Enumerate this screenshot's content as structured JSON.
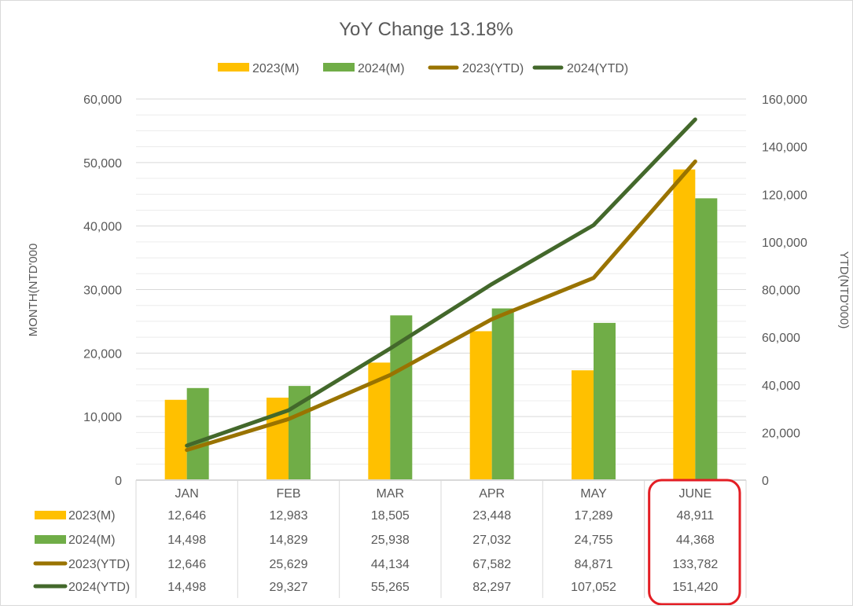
{
  "chart_data": {
    "type": "bar+line",
    "title": "YoY Change 13.18%",
    "categories": [
      "JAN",
      "FEB",
      "MAR",
      "APR",
      "MAY",
      "JUNE"
    ],
    "ylabel": "MONTH(NTD'000",
    "y2label": "YTD(NTD'000)",
    "ylim": [
      0,
      60000
    ],
    "y2lim": [
      0,
      160000
    ],
    "yticks": [
      "0",
      "10,000",
      "20,000",
      "30,000",
      "40,000",
      "50,000",
      "60,000"
    ],
    "y2ticks": [
      "0",
      "20,000",
      "40,000",
      "60,000",
      "80,000",
      "100,000",
      "120,000",
      "140,000",
      "160,000"
    ],
    "grid": true,
    "legend_position": "top",
    "series": [
      {
        "name": "2023(M)",
        "kind": "bar",
        "axis": "left",
        "color": "#FFC000",
        "values": [
          12646,
          12983,
          18505,
          23448,
          17289,
          48911
        ],
        "labels": [
          "12,646",
          "12,983",
          "18,505",
          "23,448",
          "17,289",
          "48,911"
        ]
      },
      {
        "name": "2024(M)",
        "kind": "bar",
        "axis": "left",
        "color": "#70AD47",
        "values": [
          14498,
          14829,
          25938,
          27032,
          24755,
          44368
        ],
        "labels": [
          "14,498",
          "14,829",
          "25,938",
          "27,032",
          "24,755",
          "44,368"
        ]
      },
      {
        "name": "2023(YTD)",
        "kind": "line",
        "axis": "right",
        "color": "#997300",
        "values": [
          12646,
          25629,
          44134,
          67582,
          84871,
          133782
        ],
        "labels": [
          "12,646",
          "25,629",
          "44,134",
          "67,582",
          "84,871",
          "133,782"
        ]
      },
      {
        "name": "2024(YTD)",
        "kind": "line",
        "axis": "right",
        "color": "#43682B",
        "values": [
          14498,
          29327,
          55265,
          82297,
          107052,
          151420
        ],
        "labels": [
          "14,498",
          "29,327",
          "55,265",
          "82,297",
          "107,052",
          "151,420"
        ]
      }
    ],
    "highlight": {
      "category": "JUNE",
      "color": "#E31E24"
    }
  }
}
